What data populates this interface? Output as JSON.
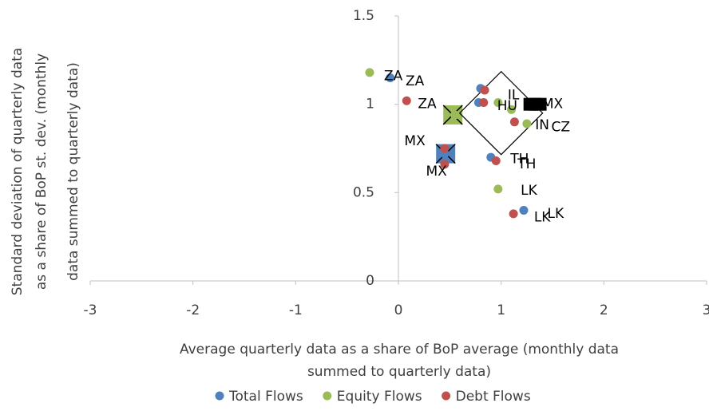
{
  "chart_data": {
    "type": "scatter",
    "xlabel": [
      "Average quarterly data as a share of BoP average (monthly data",
      "summed to quarterly data)"
    ],
    "ylabel": [
      "Standard deviation of quarterly data",
      "as a share of BoP st. dev. (monthly",
      "data summed to quarterly data)"
    ],
    "xlim": [
      -3,
      3
    ],
    "xticks": [
      -3,
      -2,
      -1,
      0,
      1,
      2,
      3
    ],
    "ylim": [
      0,
      1.5
    ],
    "yticks": [
      0,
      0.5,
      1,
      1.5
    ],
    "legend": "bottom",
    "series": [
      {
        "name": "Total Flows",
        "color": "#4f81bd",
        "x": [
          -0.08,
          0.78,
          0.8,
          0.9,
          1.22,
          0.45
        ],
        "y": [
          1.15,
          1.01,
          1.09,
          0.7,
          0.4,
          0.72
        ]
      },
      {
        "name": "Equity Flows",
        "color": "#9bbb59",
        "x": [
          -0.28,
          0.97,
          1.1,
          1.25,
          0.97,
          0.55
        ],
        "y": [
          1.18,
          1.01,
          0.97,
          0.89,
          0.52,
          0.94
        ]
      },
      {
        "name": "Debt Flows",
        "color": "#c0504d",
        "x": [
          0.08,
          0.83,
          0.84,
          1.13,
          0.95,
          1.12,
          0.45,
          0.45
        ],
        "y": [
          1.02,
          1.01,
          1.08,
          0.9,
          0.68,
          0.38,
          0.75,
          0.66
        ]
      }
    ],
    "markers": [
      {
        "x": 0.46,
        "y": 0.72,
        "shape": "square",
        "color": "#4f81bd"
      },
      {
        "x": 0.46,
        "y": 0.72,
        "shape": "cross",
        "color": "#000000"
      },
      {
        "x": 0.53,
        "y": 0.94,
        "shape": "square",
        "color": "#9bbb59"
      },
      {
        "x": 0.53,
        "y": 0.94,
        "shape": "cross",
        "color": "#000000"
      },
      {
        "x": 1.0,
        "y": 0.95,
        "shape": "diamond",
        "color": "#000000"
      },
      {
        "x": 1.28,
        "y": 1.0,
        "shape": "small-square",
        "color": "#000000"
      },
      {
        "x": 1.33,
        "y": 1.0,
        "shape": "small-square",
        "color": "#000000"
      },
      {
        "x": 1.38,
        "y": 1.0,
        "shape": "small-square",
        "color": "#000000"
      }
    ],
    "annotations": [
      {
        "text": "ZA",
        "x": -0.05,
        "y": 1.16
      },
      {
        "text": "ZA",
        "x": 0.16,
        "y": 1.13
      },
      {
        "text": "ZA",
        "x": 0.28,
        "y": 1.0
      },
      {
        "text": "MX",
        "x": 0.16,
        "y": 0.79
      },
      {
        "text": "MX",
        "x": 0.37,
        "y": 0.62
      },
      {
        "text": "TH",
        "x": 1.18,
        "y": 0.69
      },
      {
        "text": "TH",
        "x": 1.25,
        "y": 0.66
      },
      {
        "text": "LK",
        "x": 1.27,
        "y": 0.51
      },
      {
        "text": "LK",
        "x": 1.4,
        "y": 0.36
      },
      {
        "text": "LK",
        "x": 1.53,
        "y": 0.38
      },
      {
        "text": "IL",
        "x": 1.12,
        "y": 1.05
      },
      {
        "text": "HU",
        "x": 1.06,
        "y": 0.99
      },
      {
        "text": "MX",
        "x": 1.5,
        "y": 1.0
      },
      {
        "text": "IN",
        "x": 1.4,
        "y": 0.88
      },
      {
        "text": "CZ",
        "x": 1.58,
        "y": 0.87
      }
    ]
  }
}
